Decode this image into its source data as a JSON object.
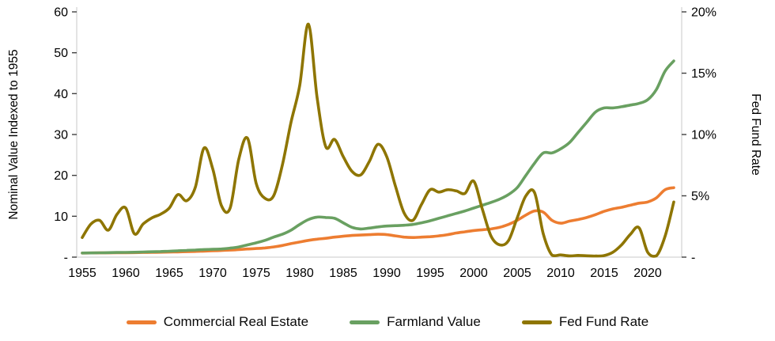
{
  "chart_data": {
    "type": "line",
    "x_years": [
      1955,
      1956,
      1957,
      1958,
      1959,
      1960,
      1961,
      1962,
      1963,
      1964,
      1965,
      1966,
      1967,
      1968,
      1969,
      1970,
      1971,
      1972,
      1973,
      1974,
      1975,
      1976,
      1977,
      1978,
      1979,
      1980,
      1981,
      1982,
      1983,
      1984,
      1985,
      1986,
      1987,
      1988,
      1989,
      1990,
      1991,
      1992,
      1993,
      1994,
      1995,
      1996,
      1997,
      1998,
      1999,
      2000,
      2001,
      2002,
      2003,
      2004,
      2005,
      2006,
      2007,
      2008,
      2009,
      2010,
      2011,
      2012,
      2013,
      2014,
      2015,
      2016,
      2017,
      2018,
      2019,
      2020,
      2021,
      2022,
      2023
    ],
    "x_tick_years": [
      1955,
      1960,
      1965,
      1970,
      1975,
      1980,
      1985,
      1990,
      1995,
      2000,
      2005,
      2010,
      2015,
      2020
    ],
    "left_axis": {
      "title": "Nominal Value Indexed to 1955",
      "min": 0,
      "max": 60,
      "ticks": [
        0,
        10,
        20,
        30,
        40,
        50,
        60
      ],
      "tick_labels": [
        "-",
        "10",
        "20",
        "30",
        "40",
        "50",
        "60"
      ]
    },
    "right_axis": {
      "title": "Fed Fund Rate",
      "min": 0,
      "max": 20,
      "ticks": [
        0,
        5,
        10,
        15,
        20
      ],
      "tick_labels": [
        "-",
        "5%",
        "10%",
        "15%",
        "20%"
      ]
    },
    "grid": false,
    "legend_position": "bottom",
    "series": [
      {
        "name": "Commercial Real Estate",
        "axis": "left",
        "color": "#ED7D31",
        "values": [
          1.0,
          1.02,
          1.04,
          1.05,
          1.07,
          1.09,
          1.11,
          1.14,
          1.17,
          1.2,
          1.24,
          1.28,
          1.33,
          1.4,
          1.48,
          1.55,
          1.62,
          1.72,
          1.85,
          2.0,
          2.1,
          2.25,
          2.5,
          2.85,
          3.3,
          3.7,
          4.1,
          4.4,
          4.6,
          4.9,
          5.1,
          5.3,
          5.4,
          5.5,
          5.6,
          5.5,
          5.2,
          4.9,
          4.8,
          4.9,
          5.0,
          5.2,
          5.5,
          5.9,
          6.2,
          6.5,
          6.7,
          6.9,
          7.3,
          8.0,
          9.0,
          10.3,
          11.3,
          11.0,
          9.0,
          8.3,
          8.8,
          9.2,
          9.7,
          10.4,
          11.2,
          11.8,
          12.2,
          12.7,
          13.2,
          13.5,
          14.5,
          16.5,
          17.0
        ]
      },
      {
        "name": "Farmland Value",
        "axis": "left",
        "color": "#69A061",
        "values": [
          1.0,
          1.03,
          1.06,
          1.1,
          1.14,
          1.17,
          1.2,
          1.25,
          1.31,
          1.38,
          1.45,
          1.55,
          1.65,
          1.75,
          1.85,
          1.92,
          2.0,
          2.2,
          2.5,
          3.0,
          3.5,
          4.1,
          4.9,
          5.6,
          6.6,
          8.0,
          9.2,
          9.8,
          9.7,
          9.5,
          8.4,
          7.3,
          6.9,
          7.1,
          7.4,
          7.6,
          7.7,
          7.8,
          8.0,
          8.4,
          8.9,
          9.5,
          10.1,
          10.7,
          11.3,
          12.0,
          12.7,
          13.4,
          14.2,
          15.3,
          17.0,
          20.0,
          23.0,
          25.5,
          25.5,
          26.5,
          28.0,
          30.5,
          33.0,
          35.5,
          36.5,
          36.5,
          36.8,
          37.2,
          37.6,
          38.5,
          41.0,
          45.5,
          48.0
        ]
      },
      {
        "name": "Fed Fund Rate",
        "axis": "right",
        "color": "#8E7500",
        "values": [
          1.6,
          2.7,
          3.0,
          2.2,
          3.5,
          4.0,
          1.9,
          2.7,
          3.2,
          3.5,
          4.0,
          5.1,
          4.6,
          5.7,
          8.9,
          7.2,
          4.2,
          4.0,
          8.0,
          9.7,
          6.0,
          4.8,
          5.0,
          7.5,
          11.0,
          14.0,
          19.0,
          13.0,
          9.0,
          9.6,
          8.2,
          7.0,
          6.7,
          7.8,
          9.2,
          8.2,
          5.8,
          3.6,
          3.0,
          4.3,
          5.5,
          5.3,
          5.5,
          5.4,
          5.2,
          6.2,
          3.9,
          1.7,
          1.0,
          1.35,
          3.2,
          5.0,
          5.25,
          1.9,
          0.16,
          0.18,
          0.1,
          0.14,
          0.11,
          0.09,
          0.13,
          0.4,
          1.0,
          1.85,
          2.4,
          0.4,
          0.1,
          1.7,
          4.5
        ]
      }
    ]
  },
  "legend": {
    "items": [
      {
        "label": "Commercial Real Estate",
        "color": "#ED7D31"
      },
      {
        "label": "Farmland Value",
        "color": "#69A061"
      },
      {
        "label": "Fed Fund Rate",
        "color": "#8E7500"
      }
    ]
  },
  "colors": {
    "axis_line": "#c9c9c9",
    "tick_mark": "#404040",
    "background": "#ffffff"
  }
}
